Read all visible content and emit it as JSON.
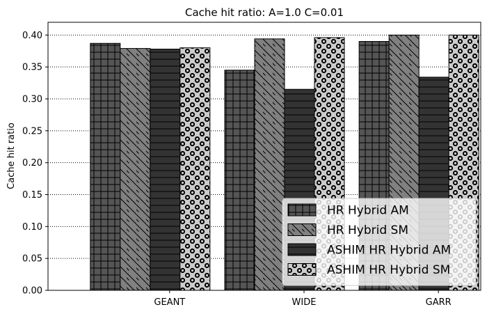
{
  "chart_data": {
    "type": "bar",
    "title": "Cache hit ratio: A=1.0 C=0.01",
    "xlabel": "",
    "ylabel": "Cache hit ratio",
    "ylim": [
      0,
      0.42
    ],
    "yticks": [
      "0.00",
      "0.05",
      "0.10",
      "0.15",
      "0.20",
      "0.25",
      "0.30",
      "0.35",
      "0.40"
    ],
    "categories": [
      "GEANT",
      "WIDE",
      "GARR"
    ],
    "grid": "horizontal dotted",
    "legend_position": "bottom-right",
    "series": [
      {
        "name": "HR Hybrid AM",
        "values": [
          0.387,
          0.345,
          0.39
        ],
        "color": "#555555",
        "pattern": "grid"
      },
      {
        "name": "HR Hybrid SM",
        "values": [
          0.379,
          0.394,
          0.4
        ],
        "color": "#808080",
        "pattern": "diagonal"
      },
      {
        "name": "ASHIM HR Hybrid AM",
        "values": [
          0.378,
          0.315,
          0.334
        ],
        "color": "#333333",
        "pattern": "horizontal"
      },
      {
        "name": "ASHIM HR Hybrid SM",
        "values": [
          0.38,
          0.396,
          0.4
        ],
        "color": "#cccccc",
        "pattern": "circles"
      }
    ]
  }
}
